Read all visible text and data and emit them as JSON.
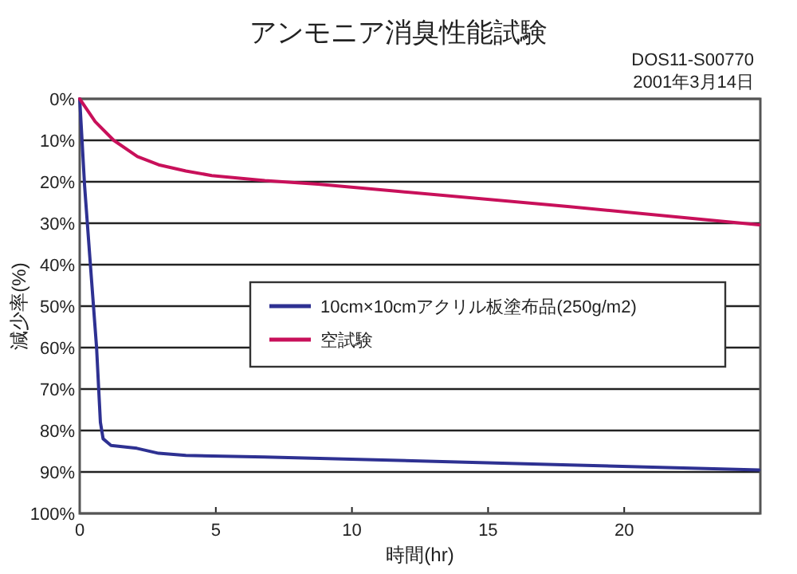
{
  "chart_data": {
    "type": "line",
    "title": "アンモニア消臭性能試験",
    "annotations": [
      "DOS11-S00770",
      "2001年3月14日"
    ],
    "xlabel": "時間(hr)",
    "ylabel": "減少率(%)",
    "xlim": [
      0,
      25
    ],
    "xticks": [
      0,
      5,
      10,
      15,
      20
    ],
    "ylim": [
      100,
      0
    ],
    "yticks": [
      {
        "value": 0,
        "label": "0%"
      },
      {
        "value": 10,
        "label": "10%"
      },
      {
        "value": 20,
        "label": "20%"
      },
      {
        "value": 30,
        "label": "30%"
      },
      {
        "value": 40,
        "label": "40%"
      },
      {
        "value": 50,
        "label": "50%"
      },
      {
        "value": 60,
        "label": "60%"
      },
      {
        "value": 70,
        "label": "70%"
      },
      {
        "value": 80,
        "label": "80%"
      },
      {
        "value": 90,
        "label": "90%"
      },
      {
        "value": 100,
        "label": "100%"
      }
    ],
    "grid": "y",
    "legend": "right",
    "series": [
      {
        "name": "10cm×10cmアクリル板塗布品(250g/m2)",
        "color": "#2e3192",
        "x": [
          0,
          0.18,
          0.37,
          0.62,
          0.76,
          0.86,
          1.15,
          2.1,
          2.9,
          3.9,
          6.8,
          11.7,
          18,
          24.95
        ],
        "values": [
          0,
          21,
          38,
          60,
          78,
          82,
          83.6,
          84.3,
          85.5,
          86,
          86.4,
          87.2,
          88.3,
          89.5
        ]
      },
      {
        "name": "空試験",
        "color": "#c8105a",
        "x": [
          0,
          0.57,
          1.25,
          2.12,
          2.9,
          3.9,
          4.85,
          6.8,
          8.75,
          11.7,
          18,
          24.95
        ],
        "values": [
          0,
          5.5,
          10,
          13.9,
          15.9,
          17.4,
          18.5,
          19.7,
          20.6,
          22.3,
          26,
          30.4
        ]
      }
    ]
  }
}
